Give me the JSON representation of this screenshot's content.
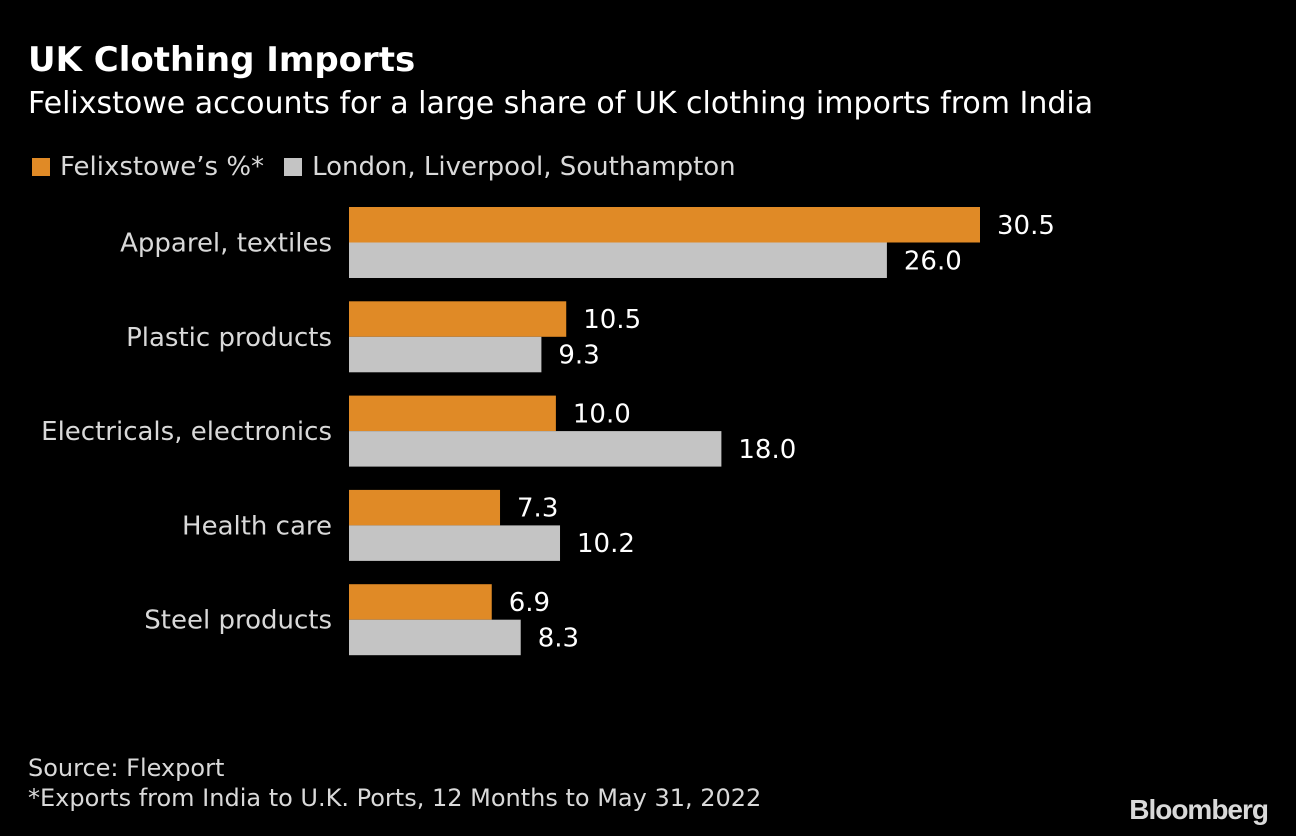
{
  "colors": {
    "background": "#000000",
    "felixstowe": "#e08a26",
    "others": "#c4c4c4"
  },
  "chart_data": {
    "type": "bar",
    "orientation": "horizontal",
    "title": "UK Clothing Imports",
    "subtitle": "Felixstowe accounts for a large share of UK clothing imports from India",
    "categories": [
      "Apparel, textiles",
      "Plastic products",
      "Electricals, electronics",
      "Health care",
      "Steel products"
    ],
    "series": [
      {
        "name": "Felixstowe’s %*",
        "color": "#e08a26",
        "values": [
          30.5,
          10.5,
          10.0,
          7.3,
          6.9
        ],
        "labels": [
          "30.5",
          "10.5",
          "10.0",
          "7.3",
          "6.9"
        ]
      },
      {
        "name": "London, Liverpool, Southampton",
        "color": "#c4c4c4",
        "values": [
          26.0,
          9.3,
          18.0,
          10.2,
          8.3
        ],
        "labels": [
          "26.0",
          "9.3",
          "18.0",
          "10.2",
          "8.3"
        ]
      }
    ],
    "xlim": [
      0,
      30.5
    ],
    "legend_position": "top-left"
  },
  "footer": {
    "source": "Source: Flexport",
    "note": "*Exports from India to U.K. Ports, 12 Months to May 31, 2022",
    "logo": "Bloomberg"
  }
}
